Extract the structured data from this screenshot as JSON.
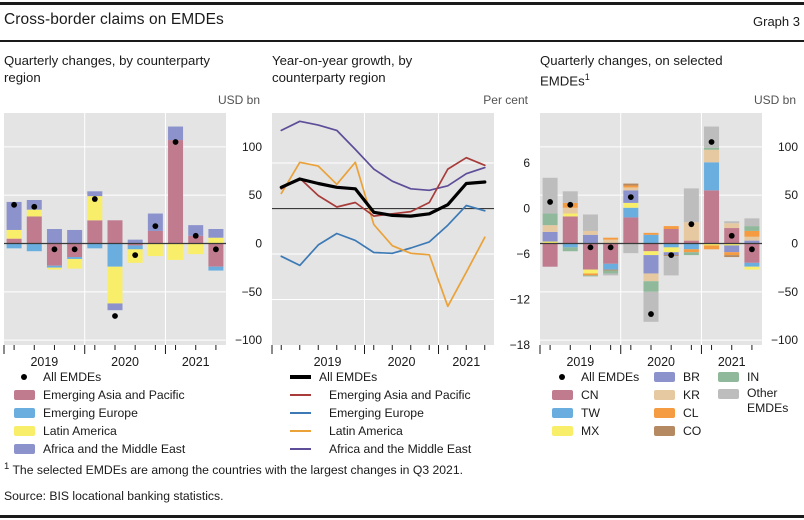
{
  "header": {
    "title": "Cross-border claims on EMDEs",
    "graph_label": "Graph 3"
  },
  "colors": {
    "plot_bg": "#e4e4e4",
    "grid": "#ffffff",
    "zero_line": "#3a3a3a",
    "dot": "#000000",
    "tick": "#1a1a1a",
    "asia": "#c07b8e",
    "europe": "#6aaee0",
    "latam": "#f9ee6a",
    "africa": "#8c93cc",
    "cn": "#c07b8e",
    "tw": "#6aaee0",
    "mx": "#f9ee6a",
    "br": "#8c93cc",
    "kr": "#e6c9a0",
    "cl": "#f59b41",
    "co": "#b58a62",
    "in": "#90b99c",
    "other": "#bdbdbd",
    "line_black": "#000000",
    "line_red": "#a73c3a",
    "line_blue": "#3d7ab5",
    "line_orange": "#eaa239",
    "line_purple": "#5e4d98"
  },
  "panels": [
    {
      "title_lines": [
        "Quarterly changes, by counterparty",
        "region"
      ],
      "unit": "USD bn"
    },
    {
      "title_lines": [
        "Year-on-year growth, by",
        "counterparty region"
      ],
      "unit": "Per cent"
    },
    {
      "title_lines": [
        "Quarterly changes, on selected",
        "EMDEs"
      ],
      "title_sup": "1",
      "unit": "USD bn"
    }
  ],
  "chart_data": [
    {
      "type": "bar",
      "stacked": true,
      "title": "Quarterly changes, by counterparty region",
      "ylabel": "USD bn",
      "ylim": [
        -105,
        135
      ],
      "yticks": [
        100,
        50,
        0,
        -50,
        -100
      ],
      "categories": [
        "2019-Q1",
        "2019-Q2",
        "2019-Q3",
        "2019-Q4",
        "2020-Q1",
        "2020-Q2",
        "2020-Q3",
        "2020-Q4",
        "2021-Q1",
        "2021-Q2",
        "2021-Q3"
      ],
      "year_labels": [
        {
          "label": "2019",
          "mid": 2
        },
        {
          "label": "2020",
          "mid": 6
        },
        {
          "label": "2021",
          "mid": 9.5
        }
      ],
      "year_boundaries": [
        4,
        8
      ],
      "series": [
        {
          "name": "Emerging Asia and Pacific",
          "color": "asia",
          "values": [
            5,
            28,
            -23,
            -14,
            24,
            24,
            -2,
            13,
            107,
            8,
            -24
          ]
        },
        {
          "name": "Emerging Europe",
          "color": "europe",
          "values": [
            -5,
            -8,
            -2,
            -2,
            -5,
            -24,
            -4,
            0,
            0,
            0,
            -4
          ]
        },
        {
          "name": "Latin America",
          "color": "latam",
          "values": [
            9,
            7,
            -2,
            -10,
            25,
            -38,
            -14,
            -13,
            -17,
            -11,
            6
          ]
        },
        {
          "name": "Africa and the Middle East",
          "color": "africa",
          "values": [
            29,
            10,
            15,
            14,
            5,
            -7,
            4,
            18,
            14,
            11,
            9
          ]
        }
      ],
      "dots": {
        "name": "All EMDEs",
        "values": [
          40,
          38,
          -6,
          -6,
          46,
          -75,
          -12,
          18,
          105,
          8,
          -6
        ]
      },
      "legend": [
        {
          "type": "dot",
          "label": "All EMDEs"
        },
        {
          "type": "swatch",
          "color": "asia",
          "label": "Emerging Asia and Pacific"
        },
        {
          "type": "swatch",
          "color": "europe",
          "label": "Emerging Europe"
        },
        {
          "type": "swatch",
          "color": "latam",
          "label": "Latin America"
        },
        {
          "type": "swatch",
          "color": "africa",
          "label": "Africa and the Middle East"
        }
      ]
    },
    {
      "type": "line",
      "title": "Year-on-year growth, by counterparty region",
      "ylabel": "Per cent",
      "ylim": [
        -18,
        12.6
      ],
      "yticks": [
        6,
        0,
        -6,
        -12,
        -18
      ],
      "categories": [
        "2018-Q4",
        "2019-Q1",
        "2019-Q2",
        "2019-Q3",
        "2019-Q4",
        "2020-Q1",
        "2020-Q2",
        "2020-Q3",
        "2020-Q4",
        "2021-Q1",
        "2021-Q2",
        "2021-Q3"
      ],
      "year_labels": [
        {
          "label": "2019",
          "mid": 3
        },
        {
          "label": "2020",
          "mid": 7
        },
        {
          "label": "2021",
          "mid": 10.5
        }
      ],
      "year_boundaries": [
        5,
        9
      ],
      "series": [
        {
          "name": "Emerging Europe",
          "color": "line_blue",
          "width": 1.7,
          "values": [
            -6.3,
            -7.5,
            -4.8,
            -3.3,
            -4.2,
            -5.8,
            -5.9,
            -5.2,
            -4.4,
            -2.2,
            0.4,
            -0.3
          ]
        },
        {
          "name": "Latin America",
          "color": "line_orange",
          "width": 1.7,
          "values": [
            2.0,
            6.1,
            5.6,
            3.2,
            6.1,
            -2.1,
            -4.9,
            -5.9,
            -6.1,
            -12.9,
            -8.4,
            -3.8
          ]
        },
        {
          "name": "Africa and the Middle East",
          "color": "line_purple",
          "width": 1.7,
          "values": [
            10.3,
            11.5,
            11.0,
            10.3,
            7.8,
            5.2,
            3.6,
            2.6,
            2.4,
            3.0,
            4.6,
            5.4
          ]
        },
        {
          "name": "Emerging Asia and Pacific",
          "color": "line_red",
          "width": 1.7,
          "values": [
            2.6,
            4.0,
            1.7,
            0.2,
            0.8,
            -1.0,
            -0.7,
            -0.4,
            0.8,
            5.2,
            6.7,
            5.7
          ]
        },
        {
          "name": "All EMDEs",
          "color": "line_black",
          "width": 3.2,
          "values": [
            2.8,
            3.9,
            3.3,
            2.8,
            2.6,
            -0.5,
            -0.9,
            -1.0,
            -0.7,
            0.5,
            3.3,
            3.5
          ]
        }
      ],
      "legend": [
        {
          "type": "line",
          "color": "line_black",
          "label": "All EMDEs",
          "thick": true,
          "indent": false
        },
        {
          "type": "line",
          "color": "line_red",
          "label": "Emerging Asia and Pacific",
          "indent": true
        },
        {
          "type": "line",
          "color": "line_blue",
          "label": "Emerging Europe",
          "indent": true
        },
        {
          "type": "line",
          "color": "line_orange",
          "label": "Latin America",
          "indent": true
        },
        {
          "type": "line",
          "color": "line_purple",
          "label": "Africa and the Middle East",
          "indent": true
        }
      ]
    },
    {
      "type": "bar",
      "stacked": true,
      "title": "Quarterly changes, on selected EMDEs",
      "ylabel": "USD bn",
      "ylim": [
        -105,
        135
      ],
      "yticks": [
        100,
        50,
        0,
        -50,
        -100
      ],
      "categories": [
        "2019-Q1",
        "2019-Q2",
        "2019-Q3",
        "2019-Q4",
        "2020-Q1",
        "2020-Q2",
        "2020-Q3",
        "2020-Q4",
        "2021-Q1",
        "2021-Q2",
        "2021-Q3"
      ],
      "year_labels": [
        {
          "label": "2019",
          "mid": 2
        },
        {
          "label": "2020",
          "mid": 6
        },
        {
          "label": "2021",
          "mid": 9.5
        }
      ],
      "year_boundaries": [
        4,
        8
      ],
      "series": [
        {
          "name": "CN",
          "color": "cn",
          "values": [
            -24,
            28,
            -27,
            -21,
            27,
            -8,
            15,
            3,
            55,
            16,
            -20
          ]
        },
        {
          "name": "TW",
          "color": "tw",
          "values": [
            0,
            -4,
            0,
            -6,
            10,
            9,
            -4,
            -6,
            29,
            0,
            -4
          ]
        },
        {
          "name": "MX",
          "color": "mx",
          "values": [
            2,
            3,
            -4,
            0,
            5,
            -4,
            -5,
            0,
            -2,
            -2,
            -3
          ]
        },
        {
          "name": "BR",
          "color": "br",
          "values": [
            10,
            0,
            9,
            0,
            13,
            -19,
            -3,
            0,
            0,
            -7,
            3
          ]
        },
        {
          "name": "KR",
          "color": "kr",
          "values": [
            7,
            6,
            4,
            4,
            3,
            -8,
            0,
            19,
            13,
            5,
            4
          ]
        },
        {
          "name": "CL",
          "color": "cl",
          "values": [
            0,
            5,
            -2,
            2,
            2,
            2,
            3,
            -3,
            -4,
            -3,
            6
          ]
        },
        {
          "name": "CO",
          "color": "co",
          "values": [
            0,
            0,
            0,
            -1,
            2,
            0,
            -1,
            0,
            0,
            -2,
            0
          ]
        },
        {
          "name": "IN",
          "color": "in",
          "values": [
            12,
            -4,
            -1,
            -3,
            0,
            -11,
            0,
            -3,
            2,
            0,
            5
          ]
        },
        {
          "name": "Other EMDEs",
          "color": "other",
          "values": [
            37,
            12,
            17,
            -2,
            -10,
            -31,
            -20,
            35,
            22,
            2,
            8
          ]
        }
      ],
      "dots": {
        "name": "All EMDEs",
        "values": [
          43,
          40,
          -4,
          -4,
          48,
          -73,
          -12,
          20,
          105,
          8,
          -6
        ]
      },
      "legend_columns": [
        [
          {
            "type": "dot",
            "label": "All EMDEs"
          },
          {
            "type": "swatch",
            "color": "cn",
            "label": "CN"
          },
          {
            "type": "swatch",
            "color": "tw",
            "label": "TW"
          },
          {
            "type": "swatch",
            "color": "mx",
            "label": "MX"
          }
        ],
        [
          {
            "type": "swatch",
            "color": "br",
            "label": "BR"
          },
          {
            "type": "swatch",
            "color": "kr",
            "label": "KR"
          },
          {
            "type": "swatch",
            "color": "cl",
            "label": "CL"
          },
          {
            "type": "swatch",
            "color": "co",
            "label": "CO"
          }
        ],
        [
          {
            "type": "swatch",
            "color": "in",
            "label": "IN"
          },
          {
            "type": "swatch",
            "color": "other",
            "label": "Other EMDEs",
            "wrap": true
          }
        ]
      ]
    }
  ],
  "footnote": {
    "sup": "1",
    "text": "The selected EMDEs are among the countries with the largest changes in Q3 2021."
  },
  "source": "Source: BIS locational banking statistics."
}
